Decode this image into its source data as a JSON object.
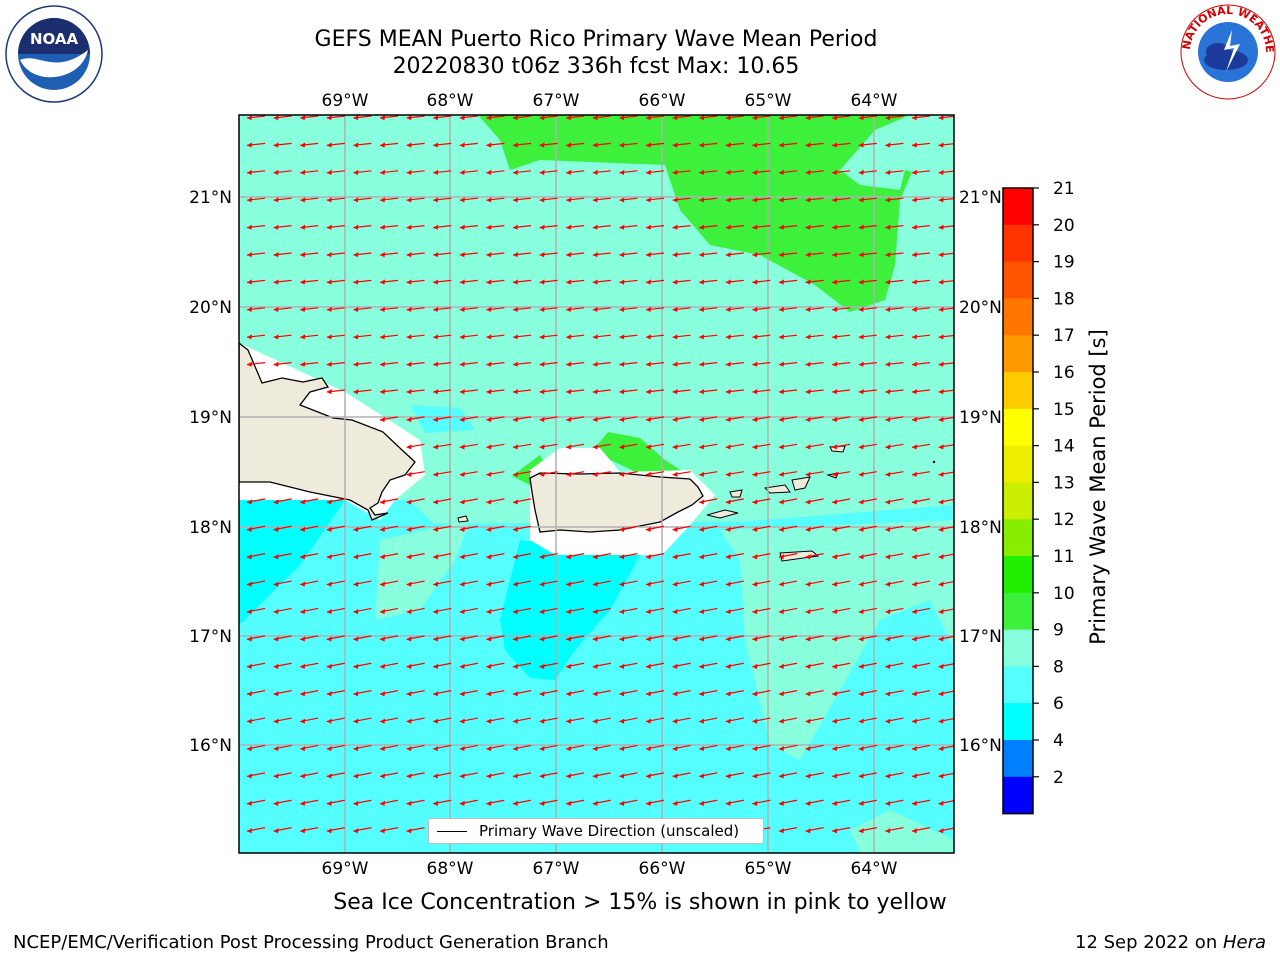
{
  "title": {
    "line1": "GEFS MEAN Puerto Rico Primary Wave Mean Period",
    "line2": "20220830 t06z 336h fcst   Max: 10.65"
  },
  "map": {
    "lon_ticks": [
      "69°W",
      "68°W",
      "67°W",
      "66°W",
      "65°W",
      "64°W"
    ],
    "lat_ticks": [
      "21°N",
      "20°N",
      "19°N",
      "18°N",
      "17°N",
      "16°N"
    ],
    "legend_label": "Primary Wave Direction (unscaled)",
    "arrow_color": "#ff0000",
    "land_color": "#efebdc",
    "coast_color": "#000000",
    "grid_color": "#b0b0b0"
  },
  "colorbar": {
    "label": "Primary Wave Mean Period [s]",
    "ticks": [
      "21",
      "20",
      "19",
      "18",
      "17",
      "16",
      "15",
      "14",
      "13",
      "12",
      "11",
      "10",
      "9",
      "8",
      "6",
      "4",
      "2"
    ],
    "colors_bottom_to_top": [
      "#0000ff",
      "#0080ff",
      "#00ffff",
      "#55ffff",
      "#88ffdd",
      "#3cf03c",
      "#22ee00",
      "#88ee00",
      "#ccee00",
      "#eeee00",
      "#ffff00",
      "#ffcc00",
      "#ff9900",
      "#ff7700",
      "#ff5500",
      "#ff3300",
      "#ff0000"
    ]
  },
  "note": "Sea Ice Concentration > 15% is shown in pink to yellow",
  "footer": {
    "left": "NCEP/EMC/Verification Post Processing Product Generation Branch",
    "right_prefix": "12 Sep 2022 on ",
    "right_host": "Hera"
  },
  "logos": {
    "noaa_text": "NOAA",
    "nws_text": "NATIONAL WEATHER SERVICE"
  }
}
